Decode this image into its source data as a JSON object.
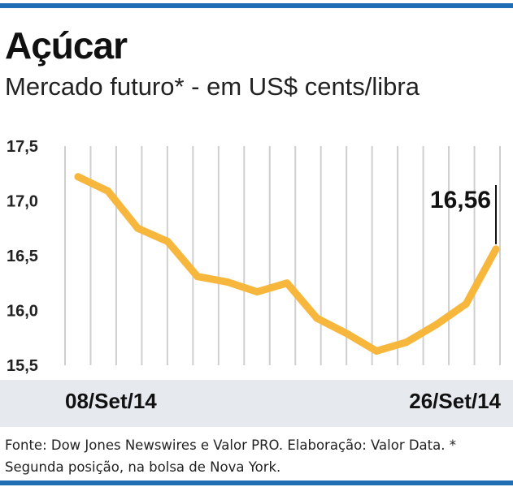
{
  "header": {
    "title": "Açúcar",
    "subtitle": "Mercado futuro* - em US$ cents/libra"
  },
  "colors": {
    "line": "#f6b73c",
    "grid": "#cfcfcf",
    "rule": "#1f6db3",
    "date_bar": "#e6e9ee"
  },
  "chart_data": {
    "type": "line",
    "title": "Açúcar",
    "subtitle": "Mercado futuro* - em US$ cents/libra",
    "ylim": [
      15.5,
      17.5
    ],
    "yticks": [
      "17,5",
      "17,0",
      "16,5",
      "16,0",
      "15,5"
    ],
    "ytick_values": [
      17.5,
      17.0,
      16.5,
      16.0,
      15.5
    ],
    "x_start_label": "08/Set/14",
    "x_end_label": "26/Set/14",
    "grid": "vertical",
    "last_value_label": "16,56",
    "series": [
      {
        "values": [
          17.22,
          17.09,
          16.75,
          16.63,
          16.31,
          16.26,
          16.17,
          16.25,
          15.93,
          15.79,
          15.63,
          15.71,
          15.87,
          16.06,
          16.56
        ]
      }
    ]
  },
  "footer": {
    "source": "Fonte: Dow Jones Newswires e Valor PRO. Elaboração: Valor Data. * Segunda posição, na bolsa de Nova York."
  }
}
